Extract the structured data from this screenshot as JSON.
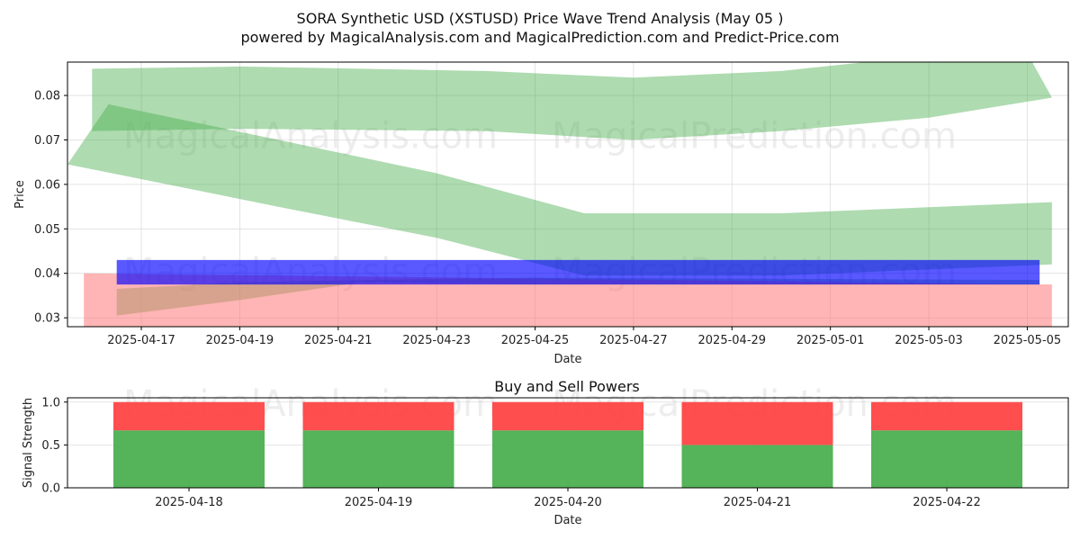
{
  "title_line1": "SORA Synthetic USD (XSTUSD) Price Wave Trend Analysis (May 05 )",
  "title_line2": "powered by MagicalAnalysis.com and MagicalPrediction.com and Predict-Price.com",
  "watermarks": [
    "MagicalAnalysis.com",
    "MagicalPrediction.com"
  ],
  "chart_data": [
    {
      "type": "area",
      "xlabel": "Date",
      "ylabel": "Price",
      "ylim": [
        0.028,
        0.0875
      ],
      "xlim": [
        "2025-04-15T12:00",
        "2025-05-05T20:00"
      ],
      "y_ticks": [
        0.03,
        0.04,
        0.05,
        0.06,
        0.07,
        0.08
      ],
      "y_tick_labels": [
        "0.03",
        "0.04",
        "0.05",
        "0.06",
        "0.07",
        "0.08"
      ],
      "x_ticks": [
        "2025-04-17",
        "2025-04-19",
        "2025-04-21",
        "2025-04-23",
        "2025-04-25",
        "2025-04-27",
        "2025-04-29",
        "2025-05-01",
        "2025-05-03",
        "2025-05-05"
      ],
      "grid": true,
      "colors": {
        "green": "#4caf50",
        "blue": "#0000ff",
        "red": "#ff6b6b"
      },
      "bands": [
        {
          "color": "green",
          "opacity": 0.45,
          "upper": [
            [
              "2025-04-16T00:00",
              0.086
            ],
            [
              "2025-04-19T00:00",
              0.0865
            ],
            [
              "2025-04-24T00:00",
              0.0855
            ],
            [
              "2025-04-27T00:00",
              0.084
            ],
            [
              "2025-04-30T00:00",
              0.0855
            ],
            [
              "2025-05-03T00:00",
              0.089
            ],
            [
              "2025-05-05T00:00",
              0.0895
            ],
            [
              "2025-05-05T12:00",
              0.0795
            ]
          ],
          "lower": [
            [
              "2025-05-05T12:00",
              0.0795
            ],
            [
              "2025-05-03T00:00",
              0.075
            ],
            [
              "2025-04-30T00:00",
              0.072
            ],
            [
              "2025-04-27T00:00",
              0.07
            ],
            [
              "2025-04-24T00:00",
              0.072
            ],
            [
              "2025-04-19T00:00",
              0.0725
            ],
            [
              "2025-04-16T00:00",
              0.072
            ]
          ]
        },
        {
          "color": "green",
          "opacity": 0.45,
          "upper": [
            [
              "2025-04-16T08:00",
              0.078
            ],
            [
              "2025-04-20T00:00",
              0.0695
            ],
            [
              "2025-04-23T00:00",
              0.0625
            ],
            [
              "2025-04-26T00:00",
              0.0535
            ],
            [
              "2025-04-30T00:00",
              0.0535
            ],
            [
              "2025-05-05T12:00",
              0.056
            ]
          ],
          "lower": [
            [
              "2025-05-05T12:00",
              0.042
            ],
            [
              "2025-04-30T00:00",
              0.0395
            ],
            [
              "2025-04-26T00:00",
              0.0395
            ],
            [
              "2025-04-23T00:00",
              0.048
            ],
            [
              "2025-04-20T00:00",
              0.0545
            ],
            [
              "2025-04-15T12:00",
              0.0645
            ]
          ]
        },
        {
          "color": "green",
          "opacity": 0.45,
          "upper": [
            [
              "2025-04-16T12:00",
              0.0365
            ],
            [
              "2025-04-19T00:00",
              0.038
            ],
            [
              "2025-04-21T12:00",
              0.0385
            ],
            [
              "2025-04-25T00:00",
              0.039
            ],
            [
              "2025-05-05T06:00",
              0.0385
            ]
          ],
          "lower": [
            [
              "2025-05-05T06:00",
              0.0375
            ],
            [
              "2025-04-25T00:00",
              0.0375
            ],
            [
              "2025-04-21T12:00",
              0.038
            ],
            [
              "2025-04-19T00:00",
              0.034
            ],
            [
              "2025-04-16T12:00",
              0.0305
            ]
          ]
        },
        {
          "color": "red",
          "opacity": 0.5,
          "upper": [
            [
              "2025-04-15T20:00",
              0.04
            ],
            [
              "2025-05-05T12:00",
              0.0375
            ]
          ],
          "lower": [
            [
              "2025-05-05T12:00",
              0.028
            ],
            [
              "2025-04-15T20:00",
              0.028
            ]
          ]
        },
        {
          "color": "blue",
          "opacity": 0.65,
          "upper": [
            [
              "2025-04-16T12:00",
              0.043
            ],
            [
              "2025-05-05T06:00",
              0.043
            ]
          ],
          "lower": [
            [
              "2025-05-05T06:00",
              0.0375
            ],
            [
              "2025-04-16T12:00",
              0.0375
            ]
          ]
        }
      ]
    },
    {
      "type": "bar",
      "title": "Buy and Sell Powers",
      "xlabel": "Date",
      "ylabel": "Signal Strength",
      "ylim": [
        0,
        1.05
      ],
      "y_ticks": [
        0.0,
        0.5,
        1.0
      ],
      "y_tick_labels": [
        "0.0",
        "0.5",
        "1.0"
      ],
      "categories": [
        "2025-04-18",
        "2025-04-19",
        "2025-04-20",
        "2025-04-21",
        "2025-04-22"
      ],
      "series": [
        {
          "color": "#4caf50",
          "values": [
            0.67,
            0.67,
            0.67,
            0.5,
            0.67
          ]
        },
        {
          "color": "#ff4444",
          "values": [
            0.33,
            0.33,
            0.33,
            0.5,
            0.33
          ]
        }
      ],
      "grid": true
    }
  ]
}
